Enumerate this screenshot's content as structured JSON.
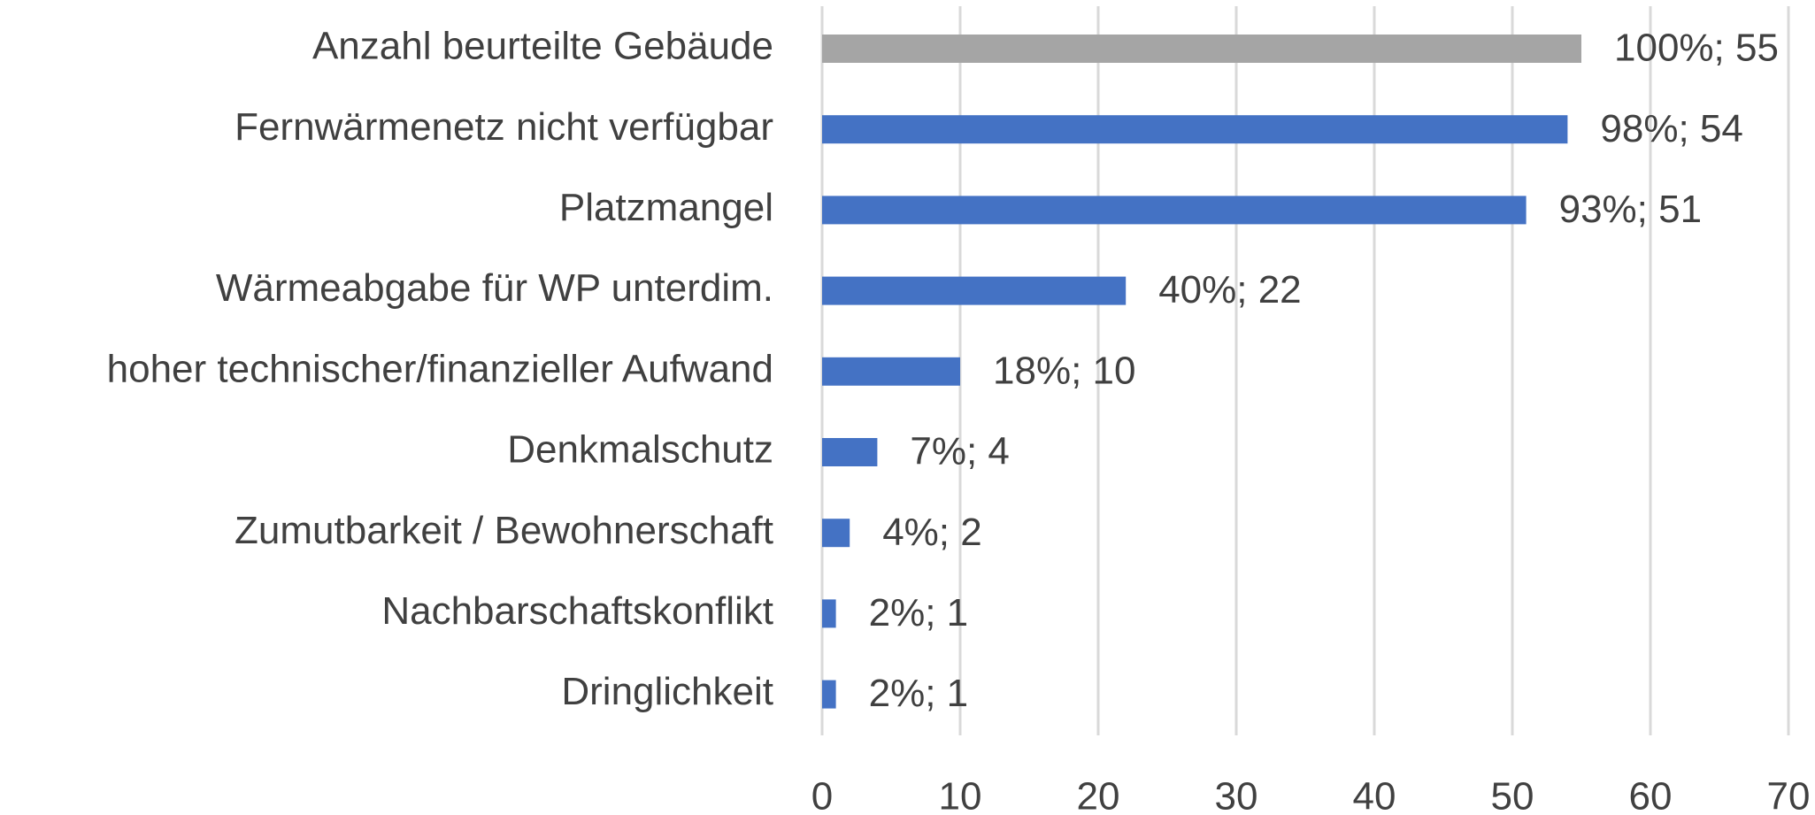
{
  "chart_data": {
    "type": "barh",
    "categories": [
      "Anzahl beurteilte Gebäude",
      "Fernwärmenetz nicht verfügbar",
      "Platzmangel",
      "Wärmeabgabe für WP unterdim.",
      "hoher technischer/finanzieller Aufwand",
      "Denkmalschutz",
      "Zumutbarkeit / Bewohnerschaft",
      "Nachbarschaftskonflikt",
      "Dringlichkeit"
    ],
    "values": [
      55,
      54,
      51,
      22,
      10,
      4,
      2,
      1,
      1
    ],
    "value_labels": [
      "100%; 55",
      "98%; 54",
      "93%; 51",
      "40%; 22",
      "18%; 10",
      "7%; 4",
      "4%; 2",
      "2%; 1",
      "2%; 1"
    ],
    "colors": [
      "#a5a5a5",
      "#4472c4",
      "#4472c4",
      "#4472c4",
      "#4472c4",
      "#4472c4",
      "#4472c4",
      "#4472c4",
      "#4472c4"
    ],
    "xlim": [
      0,
      70
    ],
    "xticks": [
      0,
      10,
      20,
      30,
      40,
      50,
      60,
      70
    ],
    "grid": true
  }
}
